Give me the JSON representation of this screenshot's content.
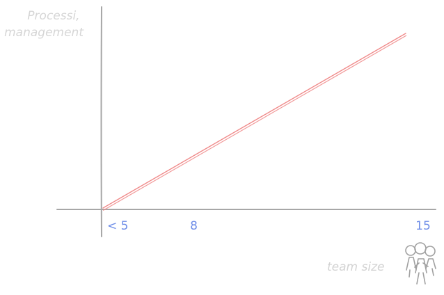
{
  "colors": {
    "axis": "#a7a7a7",
    "line": "#f08a8a",
    "tick": "#6f8ee8",
    "label": "#d4d4d4",
    "icon": "#a0a0a0"
  },
  "chart_data": {
    "type": "line",
    "ylabel_lines": [
      "Processi,",
      "management"
    ],
    "xlabel": "team size",
    "icon": "team-people-icon",
    "xticks": [
      {
        "value": 5,
        "label": "< 5"
      },
      {
        "value": 8,
        "label": "8"
      },
      {
        "value": 15,
        "label": "15"
      }
    ],
    "series": [
      {
        "x": [
          5,
          15
        ],
        "y": [
          0,
          1
        ]
      }
    ],
    "grid": false,
    "legend": "none"
  }
}
